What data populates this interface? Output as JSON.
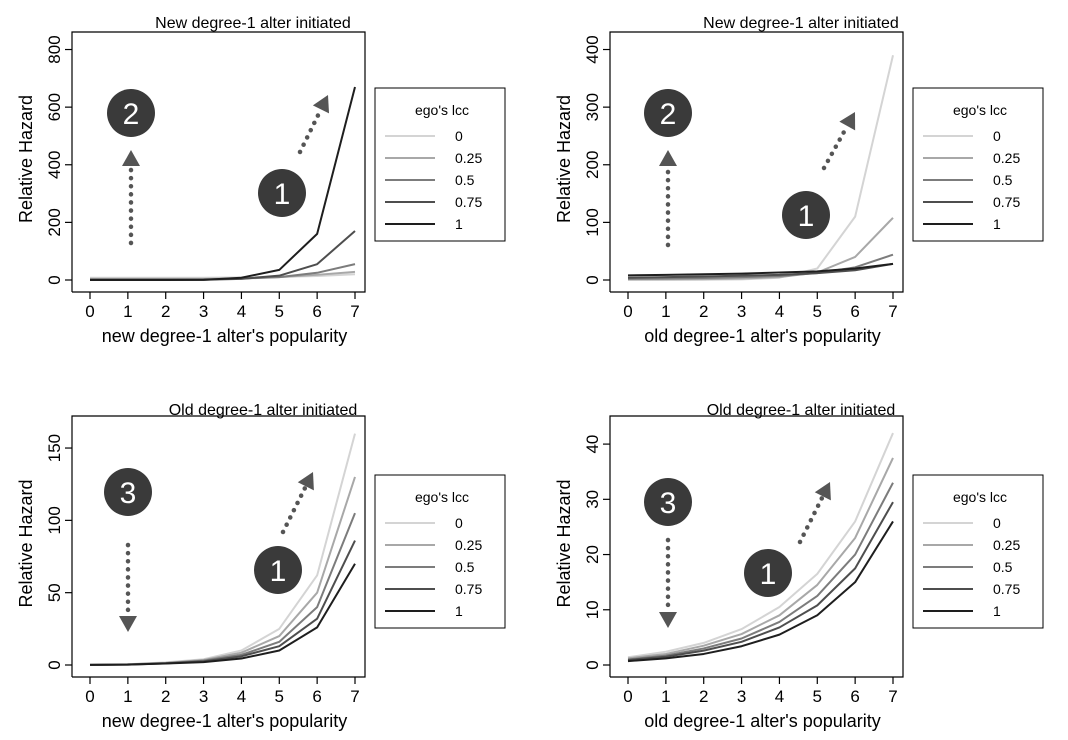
{
  "legend_title": "ego's lcc",
  "legend_entries": [
    "0",
    "0.25",
    "0.5",
    "0.75",
    "1"
  ],
  "series_colors": [
    "#d4d4d4",
    "#a8a8a8",
    "#7c7c7c",
    "#4e4e4e",
    "#1e1e1e"
  ],
  "chart_data": [
    {
      "type": "line",
      "title": "New degree-1 alter initiated",
      "xlabel": "new degree-1 alter's popularity",
      "ylabel": "Relative Hazard",
      "x": [
        0,
        1,
        2,
        3,
        4,
        5,
        6,
        7
      ],
      "xlim": [
        0,
        7
      ],
      "ylim": [
        0,
        840
      ],
      "yticks": [
        0,
        200,
        400,
        600,
        800
      ],
      "grid": false,
      "legend_position": "right",
      "series": [
        {
          "name": "0",
          "values": [
            8,
            8,
            8,
            8,
            9,
            11,
            14,
            20
          ]
        },
        {
          "name": "0.25",
          "values": [
            4,
            4,
            4,
            4,
            6,
            10,
            18,
            28
          ]
        },
        {
          "name": "0.5",
          "values": [
            2,
            2,
            2,
            2,
            5,
            10,
            25,
            55
          ]
        },
        {
          "name": "0.75",
          "values": [
            0.5,
            0.5,
            0.5,
            1,
            4,
            15,
            55,
            170
          ]
        },
        {
          "name": "1",
          "values": [
            0,
            0,
            0,
            0.5,
            8,
            35,
            160,
            670
          ]
        }
      ],
      "annotations": [
        {
          "label": "2",
          "direction": "up"
        },
        {
          "label": "1",
          "direction": "up-right"
        }
      ]
    },
    {
      "type": "line",
      "title": "New degree-1 alter initiated",
      "xlabel": "old degree-1 alter's popularity",
      "ylabel": "Relative Hazard",
      "x": [
        0,
        1,
        2,
        3,
        4,
        5,
        6,
        7
      ],
      "xlim": [
        0,
        7
      ],
      "ylim": [
        0,
        420
      ],
      "yticks": [
        0,
        100,
        200,
        300,
        400
      ],
      "grid": false,
      "legend_position": "right",
      "series": [
        {
          "name": "0",
          "values": [
            0.2,
            0.3,
            0.5,
            1,
            4,
            20,
            110,
            390
          ]
        },
        {
          "name": "0.25",
          "values": [
            1,
            1.2,
            1.5,
            2.5,
            5,
            13,
            40,
            108
          ]
        },
        {
          "name": "0.5",
          "values": [
            2,
            2.5,
            3.5,
            5,
            7,
            12,
            22,
            44
          ]
        },
        {
          "name": "0.75",
          "values": [
            4,
            5,
            6,
            7.5,
            9,
            12,
            17,
            28
          ]
        },
        {
          "name": "1",
          "values": [
            8,
            9,
            10,
            11,
            13,
            15,
            20,
            28
          ]
        }
      ],
      "annotations": [
        {
          "label": "2",
          "direction": "up"
        },
        {
          "label": "1",
          "direction": "up-right"
        }
      ]
    },
    {
      "type": "line",
      "title": "Old degree-1 alter initiated",
      "xlabel": "new degree-1 alter's popularity",
      "ylabel": "Relative Hazard",
      "x": [
        0,
        1,
        2,
        3,
        4,
        5,
        6,
        7
      ],
      "xlim": [
        0,
        7
      ],
      "ylim": [
        0,
        168
      ],
      "yticks": [
        0,
        50,
        100,
        150
      ],
      "grid": false,
      "legend_position": "right",
      "series": [
        {
          "name": "0",
          "values": [
            0.1,
            0.5,
            1.8,
            4,
            10,
            25,
            62,
            160
          ]
        },
        {
          "name": "0.25",
          "values": [
            0.1,
            0.4,
            1.5,
            3.5,
            8.5,
            20,
            50,
            130
          ]
        },
        {
          "name": "0.5",
          "values": [
            0.1,
            0.4,
            1.3,
            3,
            7,
            16,
            40,
            105
          ]
        },
        {
          "name": "0.75",
          "values": [
            0.1,
            0.3,
            1.1,
            2.5,
            6,
            13,
            32,
            86
          ]
        },
        {
          "name": "1",
          "values": [
            0.1,
            0.3,
            1,
            2,
            4.5,
            10,
            26,
            70
          ]
        }
      ],
      "annotations": [
        {
          "label": "3",
          "direction": "down"
        },
        {
          "label": "1",
          "direction": "up-right"
        }
      ]
    },
    {
      "type": "line",
      "title": "Old degree-1 alter initiated",
      "xlabel": "old degree-1 alter's popularity",
      "ylabel": "Relative Hazard",
      "x": [
        0,
        1,
        2,
        3,
        4,
        5,
        6,
        7
      ],
      "xlim": [
        0,
        7
      ],
      "ylim": [
        0,
        44
      ],
      "yticks": [
        0,
        10,
        20,
        30,
        40
      ],
      "grid": false,
      "legend_position": "right",
      "series": [
        {
          "name": "0",
          "values": [
            1.4,
            2.4,
            4,
            6.5,
            10.5,
            16.5,
            26,
            42
          ]
        },
        {
          "name": "0.25",
          "values": [
            1.2,
            2,
            3.5,
            5.6,
            9,
            14.5,
            23,
            37.5
          ]
        },
        {
          "name": "0.5",
          "values": [
            1,
            1.7,
            3,
            4.8,
            7.8,
            12.5,
            20,
            33
          ]
        },
        {
          "name": "0.75",
          "values": [
            0.9,
            1.5,
            2.6,
            4.2,
            6.8,
            10.8,
            17.5,
            29.5
          ]
        },
        {
          "name": "1",
          "values": [
            0.7,
            1.2,
            2,
            3.4,
            5.5,
            9,
            15,
            26
          ]
        }
      ],
      "annotations": [
        {
          "label": "3",
          "direction": "down"
        },
        {
          "label": "1",
          "direction": "up-right"
        }
      ]
    }
  ]
}
